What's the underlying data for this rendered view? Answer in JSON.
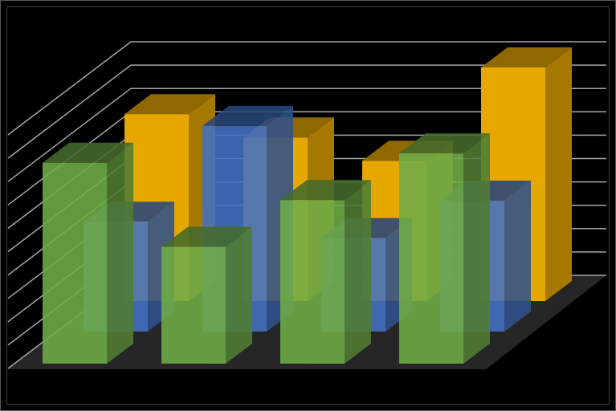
{
  "chart_data": {
    "type": "bar",
    "subtype": "3d-clustered-column",
    "title": "",
    "xlabel": "",
    "ylabel": "",
    "categories": [
      "",
      "",
      "",
      ""
    ],
    "ylim": [
      0,
      10
    ],
    "grid": true,
    "legend": "none",
    "series": [
      {
        "color": "#E6A800",
        "values": [
          8,
          7,
          6,
          10
        ]
      },
      {
        "color": "#4472C4",
        "values": [
          4.7,
          8.8,
          4,
          5.6
        ]
      },
      {
        "color": "#70AD47",
        "values": [
          8.6,
          5,
          7,
          9
        ]
      }
    ],
    "background": "#000000",
    "floor_color": "#262626",
    "gridline_color": "#A6A6A6"
  }
}
